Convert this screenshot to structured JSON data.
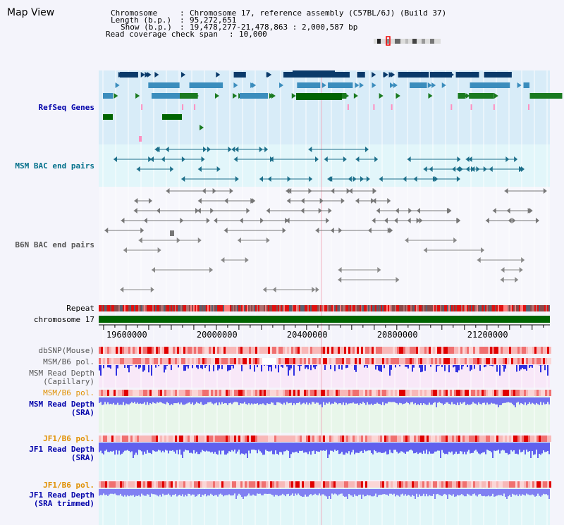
{
  "title": "Map View",
  "info": {
    "chromosome_label": "Chromosome",
    "chromosome_value": "Chromosome 17, reference assembly (C57BL/6J) (Build 37)",
    "length_label": "Length (b.p.)",
    "length_value": "95,272,651",
    "show_label": "Show (b.p.)",
    "show_value": "19,478,277-21,478,863 : 2,000,587 bp",
    "coverage_label": "Read coverage check span",
    "coverage_value": "10,000"
  },
  "tracks": {
    "refseq": "RefSeq Genes",
    "msm_bac": "MSM BAC end pairs",
    "b6n_bac": "B6N BAC end pairs",
    "repeat": "Repeat",
    "chromosome": "chromosome 17",
    "dbsnp": "dbSNP(Mouse)",
    "msm_b6_pol_1": "MSM/B6 pol.",
    "msm_depth_cap_1": "MSM Read Depth",
    "msm_depth_cap_2": "(Capillary)",
    "msm_b6_pol_2": "MSM/B6 pol.",
    "msm_depth_sra_1": "MSM Read Depth",
    "msm_depth_sra_2": "(SRA)",
    "jf1_b6_pol_1": "JF1/B6 pol.",
    "jf1_depth_sra_1": "JF1 Read Depth",
    "jf1_depth_sra_2": "(SRA)",
    "jf1_b6_pol_2": "JF1/B6 pol.",
    "jf1_depth_trim_1": "JF1 Read Depth",
    "jf1_depth_trim_2": "(SRA trimmed)"
  },
  "axis": {
    "ticks": [
      "19600000",
      "20000000",
      "20400000",
      "20800000",
      "21200000"
    ],
    "tick_values": [
      19600000,
      20000000,
      20400000,
      20800000,
      21200000
    ],
    "range": [
      19478277,
      21478863
    ]
  },
  "colors": {
    "refseq_bg": "#d8ecf8",
    "msm_bg": "#e2f6fa",
    "depth_cap_bg": "#f8e8f8",
    "depth_sra_bg": "#e8f6ea",
    "jf1_bg": "#e0f6f8",
    "chrom_bar": "#006400",
    "label_blue": "#0000aa",
    "label_teal": "#006f8a",
    "label_orange": "#e09000",
    "label_gray": "#555555"
  }
}
